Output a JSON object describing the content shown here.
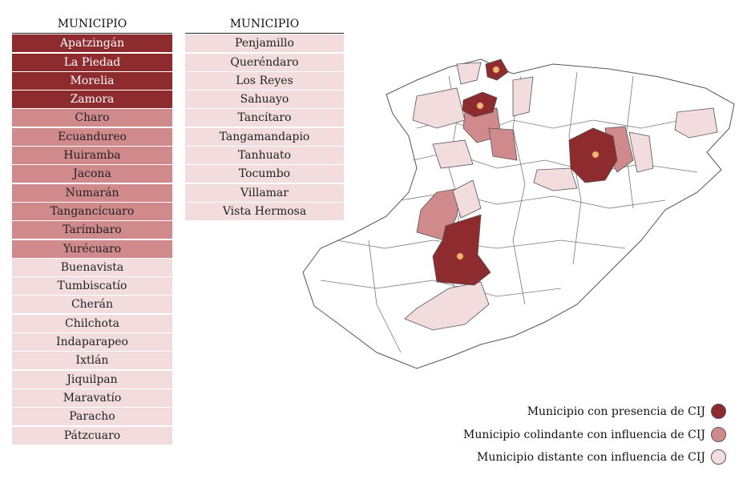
{
  "legend": [
    {
      "label": "Municipio con presencia de CIJ",
      "color": "#8e2b2f"
    },
    {
      "label": "Municipio colindante con influencia de CIJ",
      "color": "#d08a8b"
    },
    {
      "label": "Municipio distante con influencia de CIJ",
      "color": "#f3dcdd"
    }
  ],
  "tables": [
    {
      "header": "MUNICIPIO",
      "groups": [
        [
          "Apatzingán",
          "La Piedad",
          "Morelia",
          "Zamora"
        ],
        [
          "Charo",
          "Ecuandureo",
          "Huiramba",
          "Jacona",
          "Numarán",
          "Tangancícuaro",
          "Tarímbaro",
          "Yurécuaro"
        ],
        [
          "Buenavista",
          "Tumbiscatío",
          "Cherán",
          "Chilchota",
          "Indaparapeo",
          "Ixtlán",
          "Jiquilpan",
          "Maravatío",
          "Paracho",
          "Pátzcuaro"
        ]
      ]
    },
    {
      "header": "MUNICIPIO",
      "groups": [
        [],
        [],
        [
          "Penjamillo",
          "Queréndaro",
          "Los Reyes",
          "Sahuayo",
          "Tancítaro",
          "Tangamandapio",
          "Tanhuato",
          "Tocumbo",
          "Villamar",
          "Vista Hermosa"
        ]
      ]
    }
  ]
}
